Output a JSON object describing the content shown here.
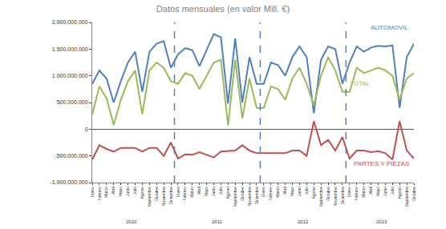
{
  "chart_data": {
    "type": "line",
    "title": "Datos mensuales (en valor Mill. €)",
    "categories": [
      "Enero",
      "Febrero",
      "Marzo",
      "Abril",
      "Mayo",
      "Junio",
      "Julio",
      "Agosto",
      "Septiembre",
      "Octubre",
      "Noviembre",
      "Diciembre",
      "Enero",
      "Febrero",
      "Marzo",
      "Abril",
      "Mayo",
      "Junio",
      "Julio",
      "Agosto",
      "Septiembre",
      "Octubre",
      "Noviembre",
      "Diciembre",
      "Enero",
      "Febrero",
      "Marzo",
      "Abril",
      "Mayo",
      "Junio",
      "Julio",
      "Agosto",
      "Septiembre",
      "Octubre",
      "Noviembre",
      "Diciembre",
      "Enero",
      "Febrero",
      "Marzo",
      "Abril",
      "Mayo",
      "Junio",
      "Julio",
      "Agosto",
      "Septiembre",
      "Octubre"
    ],
    "years": [
      "2010",
      "2011",
      "2012",
      "2013"
    ],
    "series": [
      {
        "name": "AUTOMOVIL",
        "color": "#4F81BD",
        "values": [
          850000000,
          1100000000,
          950000000,
          500000000,
          900000000,
          1250000000,
          1450000000,
          700000000,
          1450000000,
          1600000000,
          1650000000,
          1150000000,
          1400000000,
          1520000000,
          1480000000,
          1180000000,
          1480000000,
          1780000000,
          1720000000,
          480000000,
          1700000000,
          500000000,
          1350000000,
          850000000,
          850000000,
          1250000000,
          1200000000,
          1000000000,
          1350000000,
          1550000000,
          1350000000,
          300000000,
          1300000000,
          1550000000,
          1500000000,
          850000000,
          1250000000,
          1550000000,
          1450000000,
          1530000000,
          1560000000,
          1550000000,
          1570000000,
          400000000,
          1350000000,
          1600000000
        ]
      },
      {
        "name": "TOTAL",
        "color": "#9BBB59",
        "values": [
          280000000,
          800000000,
          580000000,
          80000000,
          550000000,
          900000000,
          1100000000,
          280000000,
          1100000000,
          1250000000,
          1150000000,
          900000000,
          850000000,
          1050000000,
          1000000000,
          750000000,
          1000000000,
          1250000000,
          1300000000,
          70000000,
          1300000000,
          200000000,
          950000000,
          400000000,
          400000000,
          800000000,
          750000000,
          550000000,
          950000000,
          1150000000,
          850000000,
          450000000,
          1000000000,
          1350000000,
          1100000000,
          700000000,
          700000000,
          1150000000,
          1050000000,
          1100000000,
          1150000000,
          1100000000,
          1000000000,
          550000000,
          950000000,
          1050000000
        ]
      },
      {
        "name": "PARTES Y PIEZAS",
        "color": "#C0504D",
        "values": [
          -570000000,
          -300000000,
          -370000000,
          -420000000,
          -350000000,
          -350000000,
          -350000000,
          -420000000,
          -350000000,
          -350000000,
          -500000000,
          -250000000,
          -550000000,
          -470000000,
          -480000000,
          -430000000,
          -480000000,
          -530000000,
          -420000000,
          -410000000,
          -400000000,
          -300000000,
          -400000000,
          -450000000,
          -450000000,
          -450000000,
          -450000000,
          -450000000,
          -400000000,
          -400000000,
          -500000000,
          150000000,
          -300000000,
          -200000000,
          -400000000,
          -150000000,
          -550000000,
          -400000000,
          -400000000,
          -430000000,
          -410000000,
          -450000000,
          -570000000,
          150000000,
          -400000000,
          -550000000
        ]
      }
    ],
    "ylim": [
      -1000000000,
      2000000000
    ],
    "yticks": [
      {
        "value": -1000000000,
        "label": "-1.000.000.000"
      },
      {
        "value": -500000000,
        "label": "-500.000.000"
      },
      0,
      {
        "value": 500000000,
        "label": "500.000.000"
      },
      {
        "value": 1000000000,
        "label": "1.000.000.000"
      },
      {
        "value": 1500000000,
        "label": "1.500.000.000"
      },
      {
        "value": 2000000000,
        "label": "2.000.000.000"
      }
    ],
    "grid": false
  }
}
